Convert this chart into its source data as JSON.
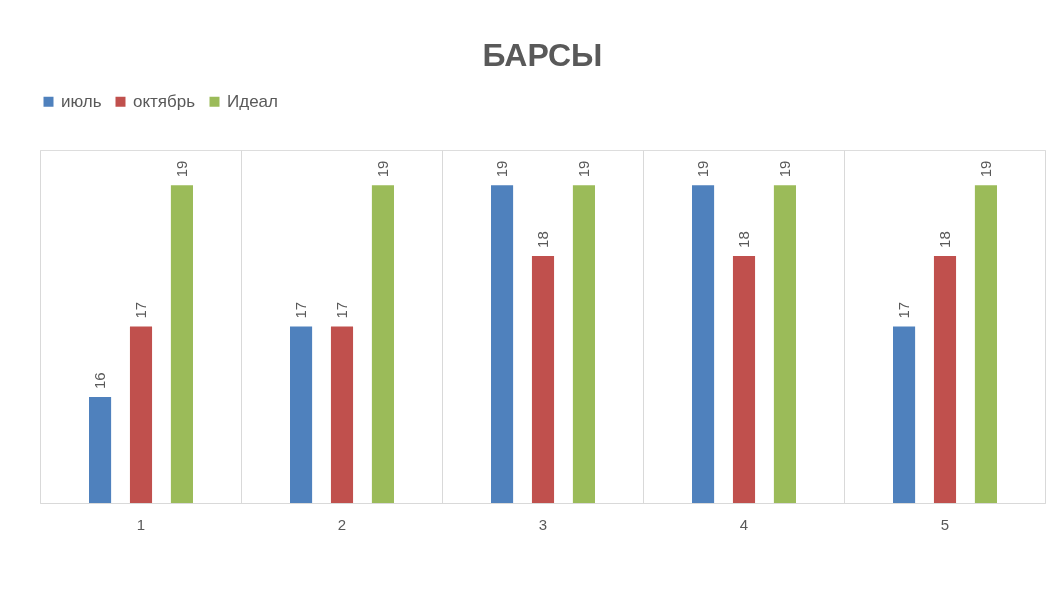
{
  "chart_data": {
    "type": "bar",
    "title": "БАРСЫ",
    "categories": [
      "1",
      "2",
      "3",
      "4",
      "5"
    ],
    "series": [
      {
        "name": "июль",
        "color": "#4f81bd",
        "values": [
          16,
          17,
          19,
          19,
          17
        ]
      },
      {
        "name": "октябрь",
        "color": "#c0504d",
        "values": [
          17,
          17,
          18,
          18,
          18
        ]
      },
      {
        "name": "Идеал",
        "color": "#9bbb59",
        "values": [
          19,
          19,
          19,
          19,
          19
        ]
      }
    ],
    "ylim": [
      14.5,
      19.5
    ],
    "data_labels": true,
    "grid": "x",
    "legend": "top",
    "tick_labels": "x"
  }
}
